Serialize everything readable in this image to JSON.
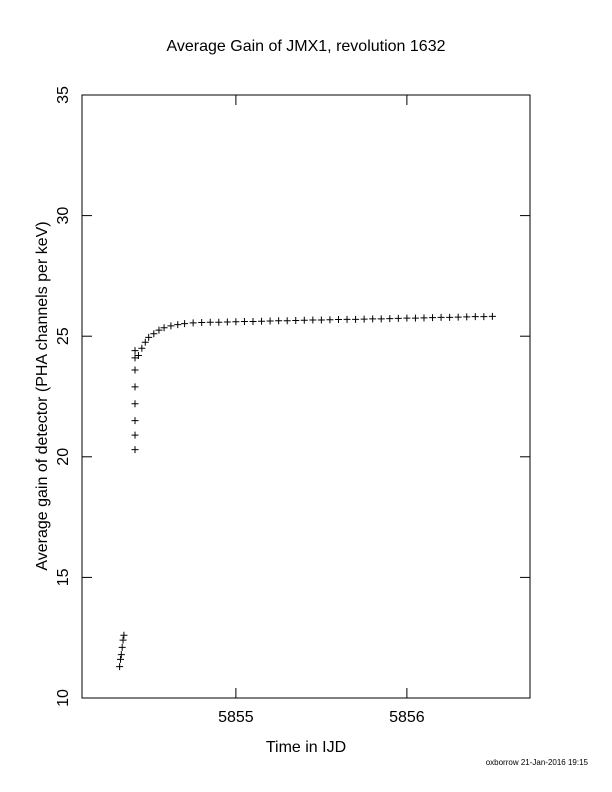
{
  "chart_data": {
    "type": "scatter",
    "title": "Average Gain of JMX1, revolution 1632",
    "xlabel": "Time in IJD",
    "ylabel": "Average gain of detector (PHA channels per keV)",
    "footer": "oxborrow 21-Jan-2016 19:15",
    "color": "#000000",
    "xlim": [
      5854.1,
      5856.72
    ],
    "xticks": [
      5855,
      5856
    ],
    "ylim": [
      10,
      35
    ],
    "yticks": [
      10,
      15,
      20,
      25,
      30,
      35
    ],
    "x": [
      5854.32,
      5854.325,
      5854.33,
      5854.335,
      5854.34,
      5854.345,
      5854.41,
      5854.41,
      5854.41,
      5854.41,
      5854.41,
      5854.41,
      5854.41,
      5854.41,
      5854.43,
      5854.45,
      5854.47,
      5854.49,
      5854.52,
      5854.55,
      5854.58,
      5854.62,
      5854.66,
      5854.7,
      5854.75,
      5854.8,
      5854.85,
      5854.9,
      5854.95,
      5855.0,
      5855.05,
      5855.1,
      5855.15,
      5855.2,
      5855.25,
      5855.3,
      5855.35,
      5855.4,
      5855.45,
      5855.5,
      5855.55,
      5855.6,
      5855.65,
      5855.7,
      5855.75,
      5855.8,
      5855.85,
      5855.9,
      5855.95,
      5856.0,
      5856.05,
      5856.1,
      5856.15,
      5856.2,
      5856.25,
      5856.3,
      5856.35,
      5856.4,
      5856.45,
      5856.5
    ],
    "values": [
      11.3,
      11.6,
      11.8,
      12.1,
      12.4,
      12.6,
      20.3,
      20.9,
      21.5,
      22.2,
      22.9,
      23.6,
      24.1,
      24.4,
      24.2,
      24.5,
      24.75,
      24.95,
      25.1,
      25.25,
      25.35,
      25.43,
      25.48,
      25.52,
      25.55,
      25.57,
      25.58,
      25.58,
      25.59,
      25.6,
      25.61,
      25.61,
      25.62,
      25.63,
      25.64,
      25.64,
      25.65,
      25.66,
      25.67,
      25.67,
      25.68,
      25.69,
      25.7,
      25.7,
      25.71,
      25.72,
      25.72,
      25.73,
      25.74,
      25.75,
      25.75,
      25.76,
      25.77,
      25.78,
      25.78,
      25.79,
      25.8,
      25.81,
      25.81,
      25.82
    ]
  }
}
